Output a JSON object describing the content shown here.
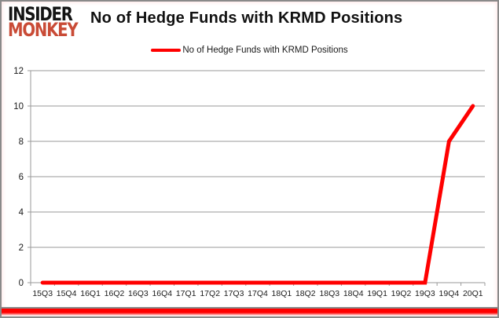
{
  "logo": {
    "line1": "INSIDER",
    "line2": "MONKEY",
    "line1_color": "#141414",
    "line2_color": "#C94B36"
  },
  "title": "No of Hedge Funds with KRMD Positions",
  "legend": {
    "label": "No of Hedge Funds with KRMD Positions",
    "swatch_color": "#FF0000"
  },
  "chart_data": {
    "type": "line",
    "title": "No of Hedge Funds with KRMD Positions",
    "categories": [
      "15Q3",
      "15Q4",
      "16Q1",
      "16Q2",
      "16Q3",
      "16Q4",
      "17Q1",
      "17Q2",
      "17Q3",
      "17Q4",
      "18Q1",
      "18Q2",
      "18Q3",
      "18Q4",
      "19Q1",
      "19Q2",
      "19Q3",
      "19Q4",
      "20Q1"
    ],
    "series": [
      {
        "name": "No of Hedge Funds with KRMD Positions",
        "color": "#FF0000",
        "values": [
          0,
          0,
          0,
          0,
          0,
          0,
          0,
          0,
          0,
          0,
          0,
          0,
          0,
          0,
          0,
          0,
          0,
          8,
          10
        ]
      }
    ],
    "xlabel": "",
    "ylabel": "",
    "ylim": [
      0,
      12
    ],
    "ytick_step": 2,
    "grid": true,
    "legend_position": "top-center"
  },
  "colors": {
    "gridline": "#9a9a9a",
    "axis": "#9a9a9a",
    "label": "#1a1a1a",
    "frame": "#8a8a8a",
    "accent_red": "#FF0000",
    "background": "#ffffff"
  }
}
